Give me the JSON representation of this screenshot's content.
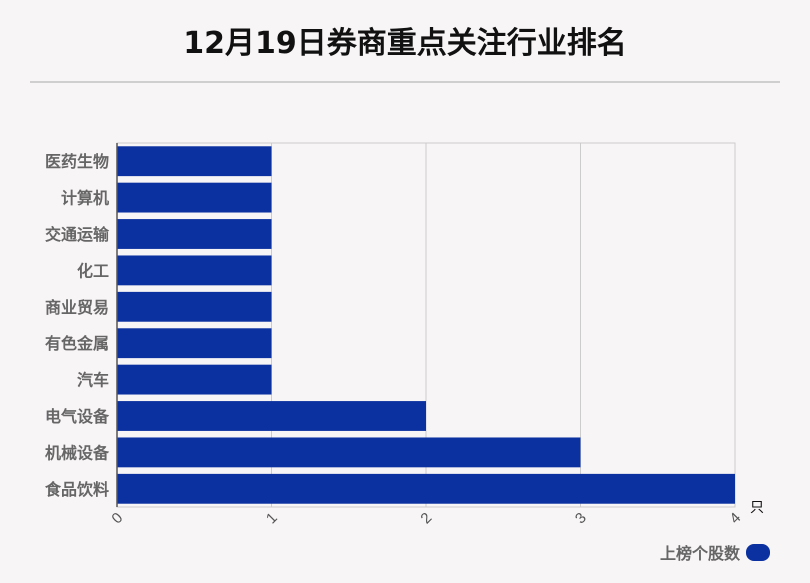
{
  "header": {
    "title": "12月19日券商重点关注行业排名"
  },
  "legend": {
    "label": "上榜个股数"
  },
  "colors": {
    "bar": "#0b31a0",
    "grid": "#cccccc",
    "axis": "#555555",
    "background": "#f8f5f6"
  },
  "chart_data": {
    "type": "bar",
    "orientation": "horizontal",
    "title": "12月19日券商重点关注行业排名",
    "categories": [
      "医药生物",
      "计算机",
      "交通运输",
      "化工",
      "商业贸易",
      "有色金属",
      "汽车",
      "电气设备",
      "机械设备",
      "食品饮料"
    ],
    "series": [
      {
        "name": "上榜个股数",
        "values": [
          1,
          1,
          1,
          1,
          1,
          1,
          1,
          2,
          3,
          4
        ]
      }
    ],
    "xlim": [
      0,
      4
    ],
    "xticks": [
      "0",
      "1",
      "2",
      "3",
      "4"
    ],
    "x_unit": "只",
    "grid": true,
    "legend_position": "bottom-right"
  }
}
